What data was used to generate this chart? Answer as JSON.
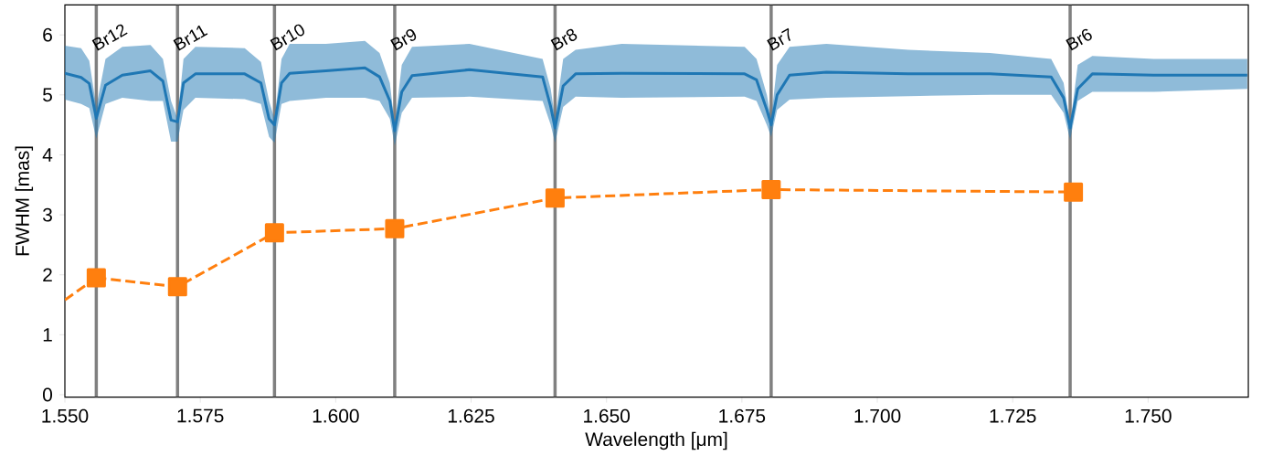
{
  "chart_data": {
    "type": "line",
    "xlabel": "Wavelength [μm]",
    "ylabel": "FWHM [mas]",
    "xlim": [
      1.55,
      1.7685
    ],
    "ylim": [
      -0.04,
      6.5
    ],
    "xticks": [
      {
        "value": 1.55,
        "label": "1.550"
      },
      {
        "value": 1.575,
        "label": "1.575"
      },
      {
        "value": 1.6,
        "label": "1.600"
      },
      {
        "value": 1.625,
        "label": "1.625"
      },
      {
        "value": 1.65,
        "label": "1.650"
      },
      {
        "value": 1.675,
        "label": "1.675"
      },
      {
        "value": 1.7,
        "label": "1.700"
      },
      {
        "value": 1.725,
        "label": "1.725"
      },
      {
        "value": 1.75,
        "label": "1.750"
      }
    ],
    "yticks": [
      0,
      1,
      2,
      3,
      4,
      5,
      6
    ],
    "ref_lines": [
      {
        "axis": "x",
        "value": 1.5558,
        "label": "Br12",
        "color": "#808080"
      },
      {
        "axis": "x",
        "value": 1.5708,
        "label": "Br11",
        "color": "#808080"
      },
      {
        "axis": "x",
        "value": 1.5887,
        "label": "Br10",
        "color": "#808080"
      },
      {
        "axis": "x",
        "value": 1.6109,
        "label": "Br9",
        "color": "#808080"
      },
      {
        "axis": "x",
        "value": 1.6405,
        "label": "Br8",
        "color": "#808080"
      },
      {
        "axis": "x",
        "value": 1.6804,
        "label": "Br7",
        "color": "#808080"
      },
      {
        "axis": "x",
        "value": 1.7356,
        "label": "Br6",
        "color": "#808080"
      }
    ],
    "series": [
      {
        "color": "#1f77b4",
        "marker": "none",
        "line_style": "solid",
        "x": [
          1.55,
          1.553,
          1.5545,
          1.5558,
          1.5575,
          1.5606,
          1.5658,
          1.5681,
          1.5696,
          1.5708,
          1.5719,
          1.5741,
          1.5832,
          1.5862,
          1.5877,
          1.5887,
          1.59,
          1.5915,
          1.5982,
          1.6054,
          1.6081,
          1.61,
          1.6109,
          1.6122,
          1.6141,
          1.6247,
          1.6382,
          1.6397,
          1.6405,
          1.642,
          1.6443,
          1.6528,
          1.6755,
          1.6777,
          1.6796,
          1.6804,
          1.6815,
          1.6838,
          1.6906,
          1.7057,
          1.7208,
          1.7321,
          1.7344,
          1.7356,
          1.737,
          1.7397,
          1.751,
          1.7683
        ],
        "values": [
          5.36,
          5.29,
          5.19,
          4.61,
          5.16,
          5.33,
          5.4,
          5.23,
          4.58,
          4.55,
          5.2,
          5.35,
          5.35,
          5.2,
          4.6,
          4.5,
          5.2,
          5.36,
          5.4,
          5.45,
          5.3,
          4.9,
          4.4,
          5.05,
          5.32,
          5.42,
          5.3,
          4.8,
          4.45,
          5.15,
          5.35,
          5.36,
          5.35,
          5.25,
          4.75,
          4.5,
          5.0,
          5.33,
          5.38,
          5.35,
          5.35,
          5.3,
          4.95,
          4.45,
          5.1,
          5.35,
          5.33,
          5.33
        ],
        "lower": [
          4.92,
          4.85,
          4.78,
          4.27,
          4.85,
          4.95,
          4.9,
          4.9,
          4.22,
          4.22,
          4.75,
          4.95,
          4.93,
          4.85,
          4.3,
          4.2,
          4.85,
          4.9,
          4.95,
          4.95,
          4.9,
          4.6,
          4.15,
          4.7,
          4.95,
          4.97,
          4.9,
          4.5,
          4.2,
          4.8,
          4.97,
          4.95,
          4.97,
          4.9,
          4.5,
          4.3,
          4.75,
          4.92,
          4.95,
          4.98,
          5.0,
          5.0,
          4.7,
          4.25,
          4.9,
          5.05,
          5.05,
          5.1
        ],
        "upper": [
          5.82,
          5.78,
          5.57,
          4.8,
          5.6,
          5.8,
          5.83,
          5.6,
          4.9,
          4.6,
          5.6,
          5.8,
          5.78,
          5.55,
          4.9,
          4.6,
          5.6,
          5.85,
          5.85,
          5.9,
          5.7,
          5.2,
          4.5,
          5.5,
          5.8,
          5.85,
          5.6,
          5.1,
          4.6,
          5.6,
          5.75,
          5.85,
          5.8,
          5.6,
          5.0,
          4.6,
          5.5,
          5.8,
          5.85,
          5.75,
          5.7,
          5.6,
          5.2,
          4.5,
          5.5,
          5.65,
          5.6,
          5.6
        ]
      },
      {
        "color": "#ff7f0e",
        "line_style": "dashed",
        "x": [
          1.55,
          1.5558
        ],
        "values": [
          1.58,
          1.95
        ]
      },
      {
        "color": "#ff7f0e",
        "marker": "square",
        "line_style": "dashed",
        "x": [
          1.5558,
          1.5708,
          1.5887,
          1.6109,
          1.6405,
          1.6804,
          1.7362
        ],
        "values": [
          1.95,
          1.8,
          2.7,
          2.77,
          3.28,
          3.42,
          3.38
        ]
      }
    ]
  }
}
